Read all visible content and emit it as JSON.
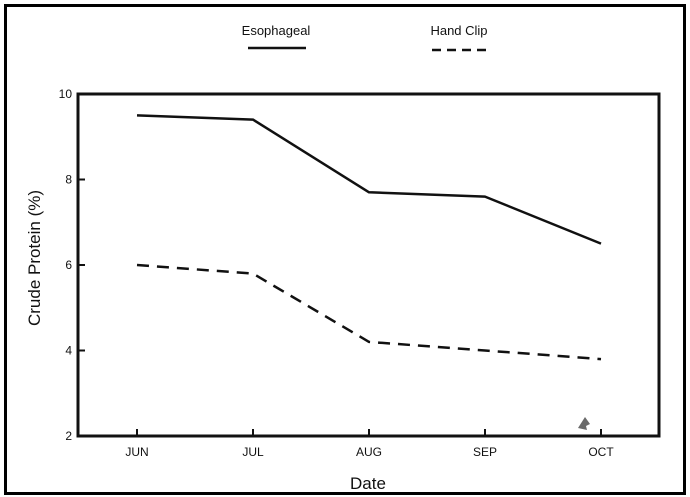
{
  "chart_data": {
    "type": "line",
    "title": "",
    "xlabel": "Date",
    "ylabel": "Crude Protein (%)",
    "categories": [
      "JUN",
      "JUL",
      "AUG",
      "SEP",
      "OCT"
    ],
    "ylim": [
      2,
      10
    ],
    "yticks": [
      "2",
      "4",
      "6",
      "8",
      "10"
    ],
    "grid": false,
    "legend_position": "top-center",
    "series": [
      {
        "name": "Esophageal",
        "values": [
          9.5,
          9.4,
          7.7,
          7.6,
          6.5
        ],
        "line_style": "solid",
        "color": "#111111"
      },
      {
        "name": "Hand Clip",
        "values": [
          6.0,
          5.8,
          4.2,
          4.0,
          3.8
        ],
        "line_style": "dashed",
        "color": "#111111"
      }
    ]
  }
}
